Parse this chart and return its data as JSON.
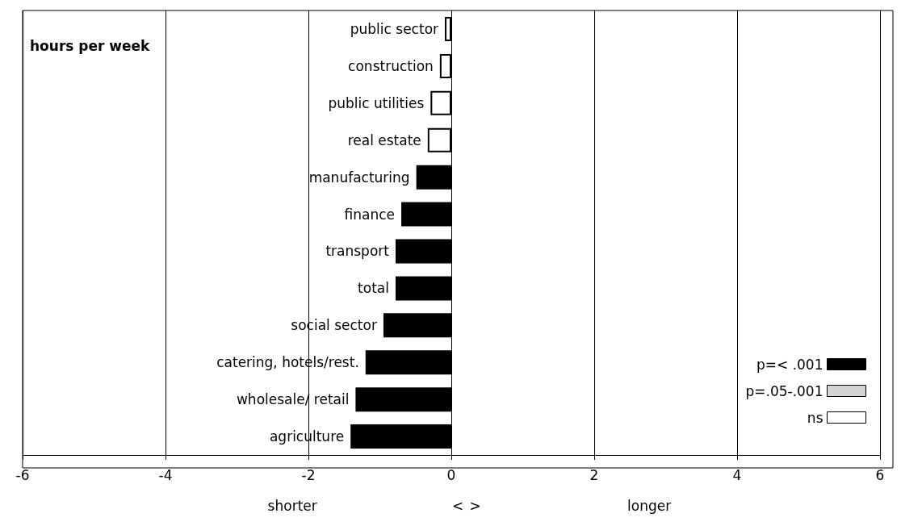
{
  "chart_data": {
    "type": "bar",
    "orientation": "horizontal",
    "stacked": true,
    "title": "hours per week",
    "categories": [
      "public sector",
      "construction",
      "public utilities",
      "real estate",
      "manufacturing",
      "finance",
      "transport",
      "total",
      "social sector",
      "catering, hotels/rest.",
      "wholesale/ retail",
      "agriculture"
    ],
    "series": [
      {
        "name": "p=< .001",
        "color": "#000000",
        "values": [
          null,
          null,
          null,
          null,
          -0.49,
          -0.7,
          -0.78,
          -0.78,
          -0.95,
          -1.2,
          -1.34,
          -1.41
        ]
      },
      {
        "name": "p=.05-.001",
        "color": "#d4d4d4",
        "values": [
          null,
          null,
          null,
          null,
          null,
          null,
          null,
          null,
          null,
          null,
          null,
          null
        ]
      },
      {
        "name": "ns",
        "color": "#ffffff",
        "values": [
          -0.09,
          -0.16,
          -0.29,
          -0.33,
          null,
          null,
          null,
          null,
          null,
          null,
          null,
          null
        ]
      }
    ],
    "xlim": [
      -6,
      6
    ],
    "xticks": [
      -6,
      -4,
      -2,
      0,
      2,
      4,
      6
    ],
    "grid": "x",
    "legend": "bottom right",
    "annotations": [
      "shorter",
      "<",
      ">",
      "longer"
    ]
  }
}
